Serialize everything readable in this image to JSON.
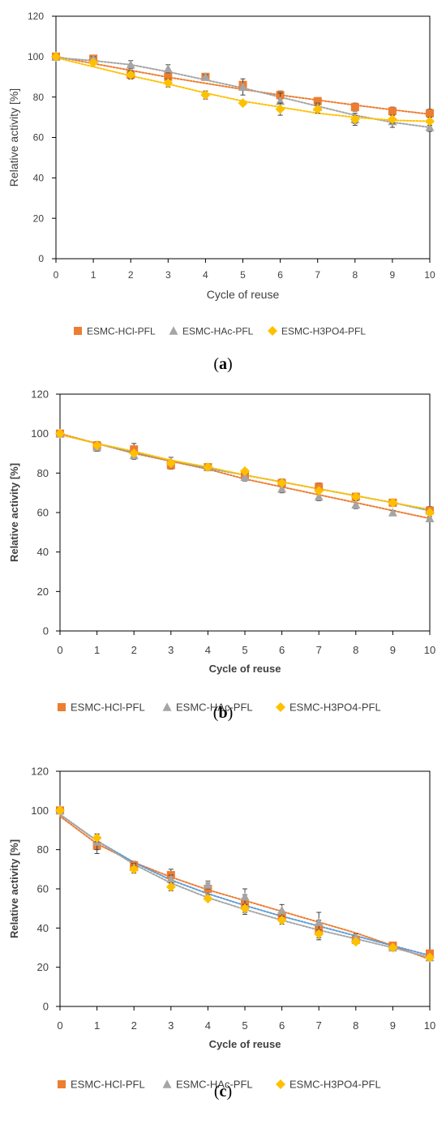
{
  "colors": {
    "HCl": "#ED7D31",
    "HAc": "#A5A5A5",
    "H3PO4": "#FFC000",
    "trend_blue": "#5B9BD5",
    "errorbar": "#404040",
    "axis": "#000000",
    "tick_text": "#404040"
  },
  "chart_data": [
    {
      "type": "scatter",
      "panel_label": "a",
      "xlabel": "Cycle of reuse",
      "ylabel": "Relative activity [%]",
      "xlim": [
        0,
        10
      ],
      "ylim": [
        0,
        120
      ],
      "xticks": [
        0,
        1,
        2,
        3,
        4,
        5,
        6,
        7,
        8,
        9,
        10
      ],
      "yticks": [
        0,
        20,
        40,
        60,
        80,
        100,
        120
      ],
      "grid": false,
      "legend": "bottom",
      "markers_on_x": true,
      "series": [
        {
          "name": "ESMC-HCl-PFL",
          "color": "#ED7D31",
          "marker": "square",
          "x": [
            0,
            1,
            2,
            3,
            4,
            5,
            6,
            7,
            8,
            9,
            10
          ],
          "y": [
            100,
            99,
            91,
            90,
            90,
            86,
            81,
            78,
            75,
            73,
            72
          ],
          "err": [
            1,
            1,
            2,
            2,
            1,
            1,
            2,
            1,
            2,
            2,
            2
          ],
          "trend": [
            100,
            96.6,
            93.2,
            89.8,
            86.8,
            83.8,
            81,
            78.5,
            76,
            73.7,
            71.5
          ],
          "trend_color": "#ED7D31"
        },
        {
          "name": "ESMC-HAc-PFL",
          "color": "#A5A5A5",
          "marker": "triangle",
          "x": [
            0,
            1,
            2,
            3,
            4,
            5,
            6,
            7,
            8,
            9,
            10
          ],
          "y": [
            100,
            99,
            96,
            94,
            90,
            85,
            78,
            75,
            69,
            68,
            65
          ],
          "err": [
            1,
            1,
            2,
            2,
            1,
            4,
            4,
            2,
            3,
            3,
            2
          ],
          "trend": [
            99.5,
            98,
            96,
            92.5,
            88.5,
            84.5,
            80,
            75.5,
            71,
            67.5,
            65
          ],
          "trend_color": "#A5A5A5"
        },
        {
          "name": "ESMC-H3PO4-PFL",
          "color": "#FFC000",
          "marker": "diamond",
          "x": [
            0,
            1,
            2,
            3,
            4,
            5,
            6,
            7,
            8,
            9,
            10
          ],
          "y": [
            100,
            97,
            91,
            87,
            81,
            77,
            74,
            74,
            69,
            69,
            68
          ],
          "err": [
            1,
            1,
            2,
            2,
            2,
            1,
            3,
            2,
            2,
            2,
            2
          ],
          "trend": [
            99.5,
            95,
            90.5,
            86.5,
            82,
            78,
            75,
            72,
            70,
            68.5,
            68
          ],
          "trend_color": "#FFC000"
        }
      ]
    },
    {
      "type": "scatter",
      "panel_label": "b",
      "xlabel": "Cycle of reuse",
      "ylabel": "Relative activity [%]",
      "xlim": [
        0,
        10
      ],
      "ylim": [
        0,
        120
      ],
      "xticks": [
        0,
        1,
        2,
        3,
        4,
        5,
        6,
        7,
        8,
        9,
        10
      ],
      "yticks": [
        0,
        20,
        40,
        60,
        80,
        100,
        120
      ],
      "grid": false,
      "legend": "bottom",
      "markers_on_x": false,
      "series": [
        {
          "name": "ESMC-HCl-PFL",
          "color": "#ED7D31",
          "marker": "square",
          "x": [
            0,
            1,
            2,
            3,
            4,
            5,
            6,
            7,
            8,
            9,
            10
          ],
          "y": [
            100,
            94,
            92,
            84,
            83,
            79,
            75,
            73,
            68,
            65,
            61
          ],
          "err": [
            1,
            2,
            3,
            2,
            1,
            1,
            2,
            2,
            1,
            1,
            2
          ],
          "trend": [
            100,
            95,
            90,
            86,
            82,
            77,
            73,
            69,
            65,
            61,
            57
          ],
          "trend_color": "#ED7D31"
        },
        {
          "name": "ESMC-HAc-PFL",
          "color": "#A5A5A5",
          "marker": "triangle",
          "x": [
            0,
            1,
            2,
            3,
            4,
            5,
            6,
            7,
            8,
            9,
            10
          ],
          "y": [
            100,
            93,
            89,
            86,
            83,
            78,
            72,
            68,
            64,
            60,
            57
          ],
          "err": [
            1,
            2,
            2,
            2,
            1,
            2,
            2,
            2,
            2,
            1,
            1
          ],
          "trend": [
            99.5,
            95,
            90.5,
            86.5,
            82.5,
            79,
            75.5,
            72,
            68.5,
            65,
            61
          ],
          "trend_color": "#5B9BD5"
        },
        {
          "name": "ESMC-H3PO4-PFL",
          "color": "#FFC000",
          "marker": "diamond",
          "x": [
            0,
            1,
            2,
            3,
            4,
            5,
            6,
            7,
            8,
            9,
            10
          ],
          "y": [
            100,
            94,
            90,
            85,
            83,
            81,
            75,
            71,
            68,
            65,
            60
          ],
          "err": [
            1,
            1,
            1,
            1,
            1,
            1,
            1,
            1,
            1,
            1,
            1
          ],
          "trend": [
            99.5,
            95,
            91,
            86.5,
            83,
            79,
            75.5,
            72,
            68.5,
            65,
            61.5
          ],
          "trend_color": "#FFC000"
        }
      ]
    },
    {
      "type": "scatter",
      "panel_label": "c",
      "xlabel": "Cycle of reuse",
      "ylabel": "Relative activity [%]",
      "xlim": [
        0,
        10
      ],
      "ylim": [
        0,
        120
      ],
      "xticks": [
        0,
        1,
        2,
        3,
        4,
        5,
        6,
        7,
        8,
        9,
        10
      ],
      "yticks": [
        0,
        20,
        40,
        60,
        80,
        100,
        120
      ],
      "grid": false,
      "legend": "bottom",
      "markers_on_x": false,
      "series": [
        {
          "name": "ESMC-HCl-PFL",
          "color": "#ED7D31",
          "marker": "square",
          "x": [
            0,
            1,
            2,
            3,
            4,
            5,
            6,
            7,
            8,
            9,
            10
          ],
          "y": [
            100,
            82,
            72,
            67,
            60,
            52,
            46,
            39,
            34,
            31,
            27
          ],
          "err": [
            1,
            4,
            2,
            3,
            3,
            5,
            3,
            5,
            2,
            1,
            1
          ],
          "trend": [
            97,
            83,
            73.5,
            66,
            59.5,
            54,
            48.5,
            43,
            37.5,
            31,
            24
          ],
          "trend_color": "#ED7D31"
        },
        {
          "name": "ESMC-HAc-PFL",
          "color": "#A5A5A5",
          "marker": "triangle",
          "x": [
            0,
            1,
            2,
            3,
            4,
            5,
            6,
            7,
            8,
            9,
            10
          ],
          "y": [
            100,
            84,
            71,
            65,
            62,
            56,
            49,
            43,
            35,
            30,
            25
          ],
          "err": [
            1,
            4,
            2,
            2,
            2,
            4,
            3,
            5,
            2,
            1,
            1
          ],
          "trend": [
            98,
            84.5,
            73.5,
            64.5,
            57.5,
            51.5,
            46,
            41,
            36,
            31,
            26
          ],
          "trend_color": "#5B9BD5"
        },
        {
          "name": "ESMC-H3PO4-PFL",
          "color": "#FFC000",
          "marker": "diamond",
          "x": [
            0,
            1,
            2,
            3,
            4,
            5,
            6,
            7,
            8,
            9,
            10
          ],
          "y": [
            100,
            86,
            70,
            61,
            55,
            50,
            44,
            37,
            33,
            30,
            25
          ],
          "err": [
            1,
            2,
            2,
            2,
            1,
            2,
            2,
            2,
            1,
            1,
            1
          ],
          "trend": [
            98,
            84.5,
            72.5,
            63,
            55.5,
            49.5,
            44,
            39,
            34.5,
            30,
            25
          ],
          "trend_color": "#A5A5A5"
        }
      ]
    }
  ]
}
